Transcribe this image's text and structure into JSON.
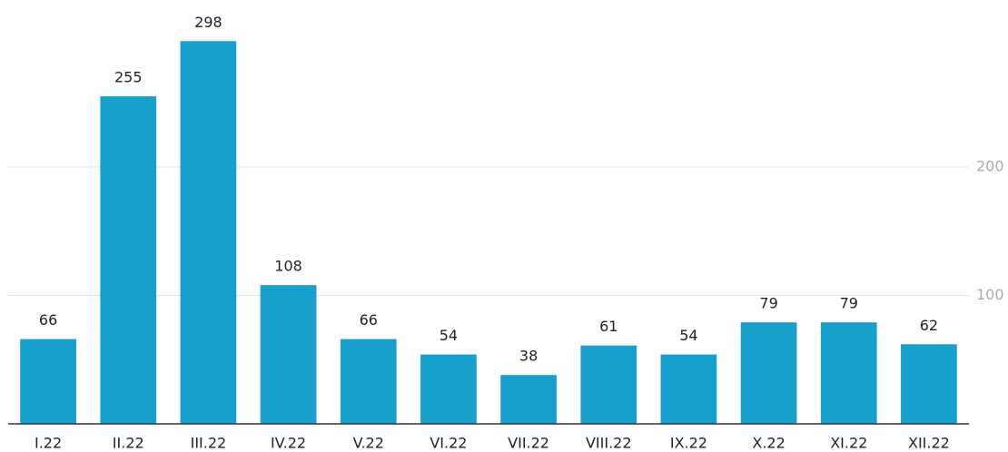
{
  "chart_data": {
    "type": "bar",
    "categories": [
      "I.22",
      "II.22",
      "III.22",
      "IV.22",
      "V.22",
      "VI.22",
      "VII.22",
      "VIII.22",
      "IX.22",
      "X.22",
      "XI.22",
      "XII.22"
    ],
    "values": [
      66,
      255,
      298,
      108,
      66,
      54,
      38,
      61,
      54,
      79,
      79,
      62
    ],
    "color": "#17a0cc",
    "ylim": [
      0,
      330
    ],
    "yticks": [
      100,
      200
    ],
    "grid": true
  }
}
